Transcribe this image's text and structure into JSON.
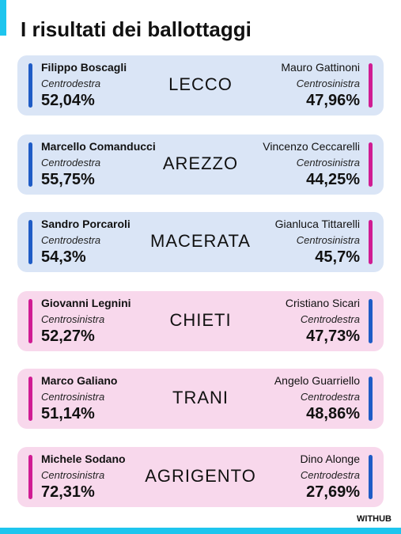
{
  "title": "I risultati dei ballottaggi",
  "footer": "WITHUB",
  "cards": [
    {
      "city": "LECCO",
      "background": "#dae5f6",
      "left": {
        "name": "Filippo Boscagli",
        "coalition": "Centrodestra",
        "result": "52,04%",
        "color": "#1f5cc6"
      },
      "right": {
        "name": "Mauro Gattinoni",
        "coalition": "Centrosinistra",
        "result": "47,96%",
        "color": "#d01c93"
      }
    },
    {
      "city": "AREZZO",
      "background": "#dae5f6",
      "left": {
        "name": "Marcello Comanducci",
        "coalition": "Centrodestra",
        "result": "55,75%",
        "color": "#1f5cc6"
      },
      "right": {
        "name": "Vincenzo Ceccarelli",
        "coalition": "Centrosinistra",
        "result": "44,25%",
        "color": "#d01c93"
      }
    },
    {
      "city": "MACERATA",
      "background": "#dae5f6",
      "left": {
        "name": "Sandro Porcaroli",
        "coalition": "Centrodestra",
        "result": "54,3%",
        "color": "#1f5cc6"
      },
      "right": {
        "name": "Gianluca Tittarelli",
        "coalition": "Centrosinistra",
        "result": "45,7%",
        "color": "#d01c93"
      }
    },
    {
      "city": "CHIETI",
      "background": "#f8d8ec",
      "left": {
        "name": "Giovanni Legnini",
        "coalition": "Centrosinistra",
        "result": "52,27%",
        "color": "#d01c93"
      },
      "right": {
        "name": "Cristiano Sicari",
        "coalition": "Centrodestra",
        "result": "47,73%",
        "color": "#1f5cc6"
      }
    },
    {
      "city": "TRANI",
      "background": "#f8d8ec",
      "left": {
        "name": "Marco Galiano",
        "coalition": "Centrosinistra",
        "result": "51,14%",
        "color": "#d01c93"
      },
      "right": {
        "name": "Angelo Guarriello",
        "coalition": "Centrodestra",
        "result": "48,86%",
        "color": "#1f5cc6"
      }
    },
    {
      "city": "AGRIGENTO",
      "background": "#f8d8ec",
      "left": {
        "name": "Michele Sodano",
        "coalition": "Centrosinistra",
        "result": "72,31%",
        "color": "#d01c93"
      },
      "right": {
        "name": "Dino Alonge",
        "coalition": "Centrodestra",
        "result": "27,69%",
        "color": "#1f5cc6"
      }
    }
  ]
}
